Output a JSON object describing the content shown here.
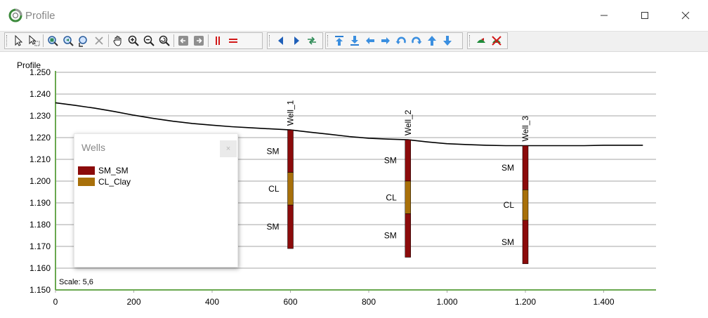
{
  "window": {
    "title": "Profile"
  },
  "colors": {
    "sm": "#8b0b0b",
    "cl": "#a8700a",
    "grid": "#a6a6a6",
    "axis": "#6aa84f",
    "line": "#000000"
  },
  "toolbar": {
    "groups": [
      [
        "select-arrow-icon",
        "select-multi-icon",
        "sep",
        "zoom-extent-icon",
        "zoom-previous-icon",
        "zoom-select-icon",
        "delete-icon",
        "sep",
        "pan-hand-icon",
        "zoom-in-icon",
        "zoom-out-icon",
        "zoom-refresh-icon",
        "sep",
        "back-icon",
        "forward-icon",
        "sep",
        "vertical-lines-icon",
        "horizontal-lines-icon"
      ],
      [
        "arrow-left-icon",
        "arrow-right-icon",
        "swap-icon"
      ],
      [
        "move-top-icon",
        "move-bottom-icon",
        "move-left-icon",
        "move-right-icon",
        "rotate-left-icon",
        "rotate-right-icon",
        "move-up-icon",
        "move-down-icon"
      ],
      [
        "add-well-icon",
        "remove-well-icon"
      ]
    ]
  },
  "chart_data": {
    "type": "line",
    "title": "Profile",
    "xlim": [
      0,
      1540
    ],
    "ylim": [
      1.15,
      1.25
    ],
    "x_ticks": [
      {
        "v": 0,
        "label": "0"
      },
      {
        "v": 200,
        "label": "200"
      },
      {
        "v": 400,
        "label": "400"
      },
      {
        "v": 600,
        "label": "600"
      },
      {
        "v": 800,
        "label": "800"
      },
      {
        "v": 1000,
        "label": "1.000"
      },
      {
        "v": 1200,
        "label": "1.200"
      },
      {
        "v": 1400,
        "label": "1.400"
      }
    ],
    "y_ticks": [
      {
        "v": 1.15,
        "label": "1.150"
      },
      {
        "v": 1.16,
        "label": "1.160"
      },
      {
        "v": 1.17,
        "label": "1.170"
      },
      {
        "v": 1.18,
        "label": "1.180"
      },
      {
        "v": 1.19,
        "label": "1.190"
      },
      {
        "v": 1.2,
        "label": "1.200"
      },
      {
        "v": 1.21,
        "label": "1.210"
      },
      {
        "v": 1.22,
        "label": "1.220"
      },
      {
        "v": 1.23,
        "label": "1.230"
      },
      {
        "v": 1.24,
        "label": "1.240"
      },
      {
        "v": 1.25,
        "label": "1.250"
      }
    ],
    "grid": true,
    "scale_label": "Scale: 5,6",
    "surface": {
      "x": [
        0,
        50,
        100,
        150,
        200,
        250,
        300,
        350,
        400,
        450,
        500,
        550,
        600,
        650,
        700,
        750,
        800,
        850,
        900,
        950,
        1000,
        1050,
        1100,
        1150,
        1200,
        1250,
        1300,
        1350,
        1400,
        1450,
        1500
      ],
      "y": [
        1.236,
        1.2348,
        1.2335,
        1.232,
        1.2303,
        1.2288,
        1.2275,
        1.2265,
        1.2257,
        1.225,
        1.2245,
        1.224,
        1.2235,
        1.2225,
        1.2215,
        1.2205,
        1.2197,
        1.2193,
        1.219,
        1.218,
        1.2172,
        1.2168,
        1.2165,
        1.2163,
        1.2163,
        1.2163,
        1.2163,
        1.2163,
        1.2165,
        1.2165,
        1.2165
      ]
    },
    "wells": [
      {
        "name": "Well_1",
        "x": 600,
        "layers": [
          {
            "code": "SM",
            "top": 1.2235,
            "bottom": 1.204
          },
          {
            "code": "CL",
            "top": 1.204,
            "bottom": 1.189
          },
          {
            "code": "SM",
            "top": 1.189,
            "bottom": 1.169
          }
        ]
      },
      {
        "name": "Well_2",
        "x": 900,
        "layers": [
          {
            "code": "SM",
            "top": 1.219,
            "bottom": 1.2
          },
          {
            "code": "CL",
            "top": 1.2,
            "bottom": 1.185
          },
          {
            "code": "SM",
            "top": 1.185,
            "bottom": 1.165
          }
        ]
      },
      {
        "name": "Well_3",
        "x": 1200,
        "layers": [
          {
            "code": "SM",
            "top": 1.2163,
            "bottom": 1.196
          },
          {
            "code": "CL",
            "top": 1.196,
            "bottom": 1.182
          },
          {
            "code": "SM",
            "top": 1.182,
            "bottom": 1.162
          }
        ]
      }
    ]
  },
  "legend": {
    "title": "Wells",
    "close_label": "×",
    "items": [
      {
        "label": "SM_SM",
        "color": "#8b0b0b"
      },
      {
        "label": "CL_Clay",
        "color": "#a8700a"
      }
    ]
  }
}
